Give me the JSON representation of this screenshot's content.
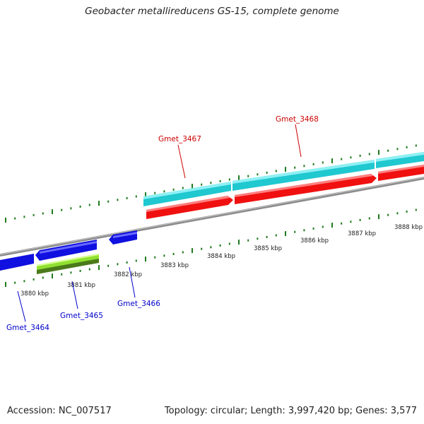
{
  "title": "Geobacter metallireducens GS-15, complete genome",
  "footer": {
    "accession": "Accession: NC_007517",
    "stats": "Topology: circular; Length: 3,997,420 bp; Genes: 3,577"
  },
  "colors": {
    "backbone": "#8c8c8c",
    "tick": "#1f7a1f",
    "forward_gene": "#f01010",
    "forward_cds": "#20c8d0",
    "reverse_gene": "#1010e0",
    "reverse_other": "#90e030",
    "reverse_other_dark": "#4a7a1a",
    "forward_label": "#cc0000",
    "reverse_label": "#0000cc"
  },
  "kbp_ticks": [
    "3880 kbp",
    "3881 kbp",
    "3882 kbp",
    "3883 kbp",
    "3884 kbp",
    "3885 kbp",
    "3886 kbp",
    "3887 kbp",
    "3888 kbp"
  ],
  "gene_labels": {
    "gmet_3464": "Gmet_3464",
    "gmet_3465": "Gmet_3465",
    "gmet_3466": "Gmet_3466",
    "gmet_3467": "Gmet_3467",
    "gmet_3468": "Gmet_3468"
  }
}
